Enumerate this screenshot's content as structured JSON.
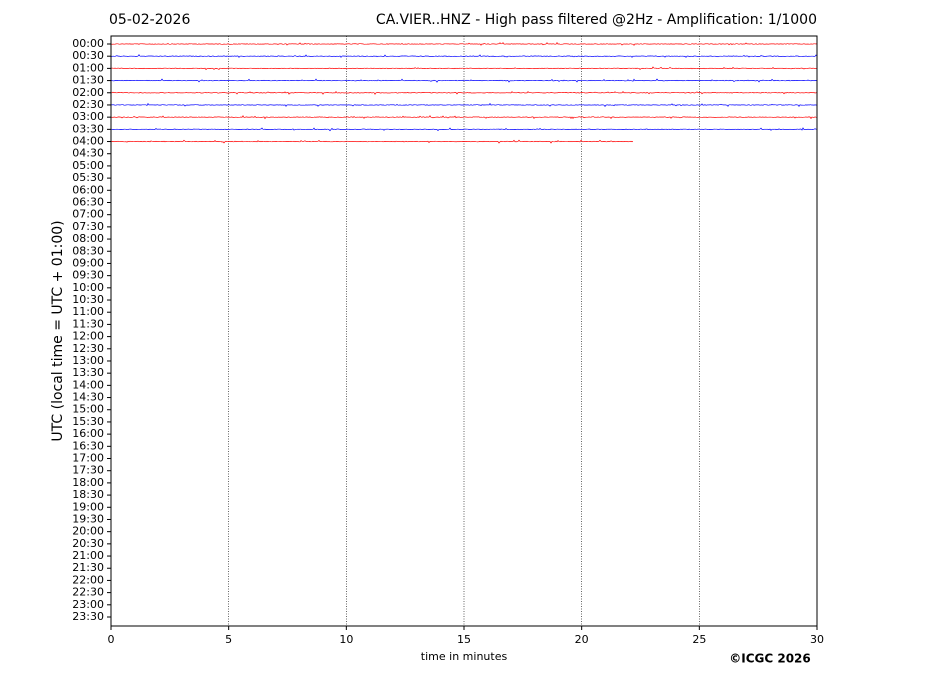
{
  "chart_data": {
    "type": "helicorder",
    "date": "05-02-2026",
    "title": "CA.VIER..HNZ - High pass filtered @2Hz - Amplification: 1/1000",
    "y_label": "UTC (local time = UTC + 01:00)",
    "x_label": "time in minutes",
    "copyright": "©ICGC 2026",
    "categories": [
      "00:00",
      "00:30",
      "01:00",
      "01:30",
      "02:00",
      "02:30",
      "03:00",
      "03:30",
      "04:00",
      "04:30",
      "05:00",
      "05:30",
      "06:00",
      "06:30",
      "07:00",
      "07:30",
      "08:00",
      "08:30",
      "09:00",
      "09:30",
      "10:00",
      "10:30",
      "11:00",
      "11:30",
      "12:00",
      "12:30",
      "13:00",
      "13:30",
      "14:00",
      "14:30",
      "15:00",
      "15:30",
      "16:00",
      "16:30",
      "17:00",
      "17:30",
      "18:00",
      "18:30",
      "19:00",
      "19:30",
      "20:00",
      "20:30",
      "21:00",
      "21:30",
      "22:00",
      "22:30",
      "23:00",
      "23:30"
    ],
    "xlim": [
      0,
      30
    ],
    "xticks": [
      0,
      5,
      10,
      15,
      20,
      25,
      30
    ],
    "grid": true,
    "traces": [
      {
        "color": "#ff0000",
        "end": 30
      },
      {
        "color": "#0000ff",
        "end": 30
      },
      {
        "color": "#ff0000",
        "end": 30
      },
      {
        "color": "#0000ff",
        "end": 30
      },
      {
        "color": "#ff0000",
        "end": 30
      },
      {
        "color": "#0000ff",
        "end": 30
      },
      {
        "color": "#ff0000",
        "end": 30
      },
      {
        "color": "#0000ff",
        "end": 30
      },
      {
        "color": "#ff0000",
        "end": 22.2
      }
    ]
  }
}
